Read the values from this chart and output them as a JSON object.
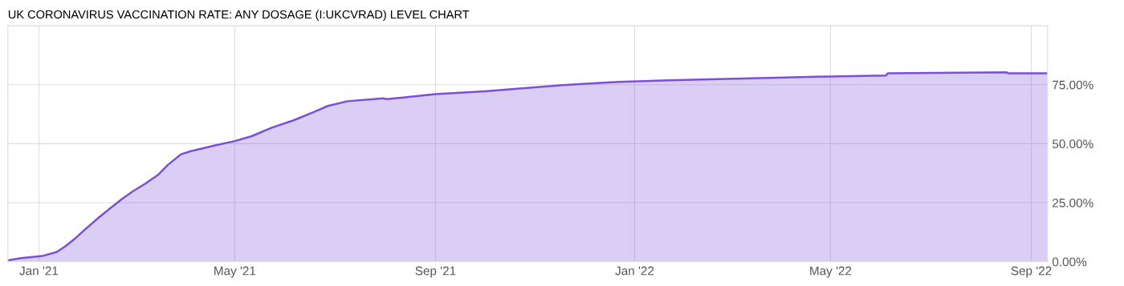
{
  "chart_data": {
    "type": "area",
    "title": "UK CORONAVIRUS VACCINATION RATE: ANY DOSAGE (I:UKCVRAD) LEVEL CHART",
    "x": [
      "2020-12-13",
      "2020-12-21",
      "2021-01-03",
      "2021-01-12",
      "2021-01-17",
      "2021-01-23",
      "2021-01-29",
      "2021-02-06",
      "2021-02-14",
      "2021-02-21",
      "2021-02-28",
      "2021-03-07",
      "2021-03-15",
      "2021-03-21",
      "2021-03-29",
      "2021-04-04",
      "2021-04-19",
      "2021-05-01",
      "2021-05-11",
      "2021-05-24",
      "2021-06-06",
      "2021-06-19",
      "2021-06-27",
      "2021-07-09",
      "2021-07-31",
      "2021-08-02",
      "2021-08-18",
      "2021-09-01",
      "2021-10-01",
      "2021-11-18",
      "2021-12-22",
      "2022-01-22",
      "2022-03-29",
      "2022-05-01",
      "2022-06-04",
      "2022-06-05",
      "2022-08-17",
      "2022-08-18",
      "2022-09-11"
    ],
    "series": [
      {
        "color": "#7b4fd6",
        "values": [
          0.6,
          1.5,
          2.4,
          4.1,
          6.4,
          9.7,
          13.5,
          18.3,
          22.8,
          26.6,
          30,
          33,
          36.8,
          41,
          45.5,
          46.8,
          49.3,
          51.1,
          53.1,
          56.9,
          59.9,
          63.6,
          66,
          68,
          69.2,
          68.9,
          70,
          71,
          72.2,
          74.8,
          76.2,
          76.9,
          78,
          78.5,
          78.9,
          79.8,
          80.3,
          79.8,
          79.8
        ]
      }
    ],
    "xlim": [
      "2020-12-13",
      "2022-09-11"
    ],
    "xticks": [
      {
        "value": "2021-01-01",
        "label": "Jan '21"
      },
      {
        "value": "2021-05-01",
        "label": "May '21"
      },
      {
        "value": "2021-09-01",
        "label": "Sep '21"
      },
      {
        "value": "2022-01-01",
        "label": "Jan '22"
      },
      {
        "value": "2022-05-01",
        "label": "May '22"
      },
      {
        "value": "2022-09-01",
        "label": "Sep '22"
      }
    ],
    "ylim": [
      0,
      100
    ],
    "yticks": [
      {
        "value": 0,
        "label": "0.00%"
      },
      {
        "value": 25,
        "label": "25.00%"
      },
      {
        "value": 50,
        "label": "50.00%"
      },
      {
        "value": 75,
        "label": "75.00%"
      }
    ],
    "grid": true,
    "legend": false,
    "marker": "none",
    "line_style": "solid"
  }
}
